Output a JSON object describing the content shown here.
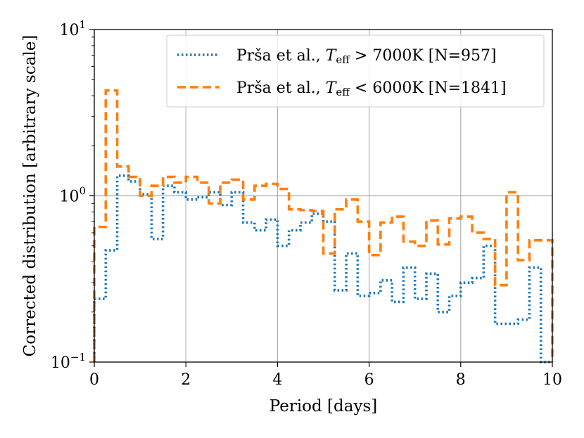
{
  "chart_data": {
    "type": "step-histogram",
    "title": "",
    "xlabel": "Period [days]",
    "ylabel": "Corrected distribution [arbitrary scale]",
    "xlim": [
      0,
      10
    ],
    "ylim": [
      0.1,
      10
    ],
    "yscale": "log",
    "grid": true,
    "legend_position": "top-right",
    "bin_width": 0.25,
    "xticks": [
      {
        "value": 0,
        "label": "0"
      },
      {
        "value": 2,
        "label": "2"
      },
      {
        "value": 4,
        "label": "4"
      },
      {
        "value": 6,
        "label": "6"
      },
      {
        "value": 8,
        "label": "8"
      },
      {
        "value": 10,
        "label": "10"
      }
    ],
    "yticks": [
      {
        "value": 0.1,
        "base": "10",
        "exp": "−1"
      },
      {
        "value": 1,
        "base": "10",
        "exp": "0"
      },
      {
        "value": 10,
        "base": "10",
        "exp": "1"
      }
    ],
    "series": [
      {
        "name": "Prša et al., T_eff > 7000K [N=957]",
        "legend_prefix": "Prša et al., ",
        "legend_var": "T",
        "legend_sub": "eff",
        "legend_suffix": " > 7000K [N=957]",
        "color": "#1f77b4",
        "style": "dotted",
        "values": [
          0.24,
          0.47,
          1.32,
          1.22,
          1.02,
          0.55,
          1.15,
          1.05,
          0.95,
          0.98,
          1.05,
          0.88,
          1.05,
          0.69,
          0.62,
          0.72,
          0.5,
          0.62,
          0.69,
          0.78,
          0.7,
          0.27,
          0.45,
          0.25,
          0.26,
          0.31,
          0.23,
          0.37,
          0.24,
          0.34,
          0.2,
          0.25,
          0.3,
          0.32,
          0.5,
          0.17,
          0.17,
          0.18,
          0.37,
          0.1
        ]
      },
      {
        "name": "Prša et al., T_eff < 6000K [N=1841]",
        "legend_prefix": "Prša et al., ",
        "legend_var": "T",
        "legend_sub": "eff",
        "legend_suffix": " < 6000K [N=1841]",
        "color": "#ff7f0e",
        "style": "dashed",
        "values": [
          0.65,
          4.3,
          1.5,
          1.3,
          1.0,
          1.15,
          1.3,
          1.2,
          1.3,
          1.2,
          0.9,
          1.2,
          1.25,
          0.95,
          1.15,
          1.18,
          1.1,
          0.83,
          0.82,
          0.81,
          0.45,
          0.83,
          0.95,
          0.7,
          0.44,
          0.69,
          0.75,
          0.53,
          0.5,
          0.71,
          0.51,
          0.73,
          0.75,
          0.6,
          0.55,
          0.29,
          1.05,
          0.41,
          0.54,
          0.54
        ]
      }
    ]
  }
}
